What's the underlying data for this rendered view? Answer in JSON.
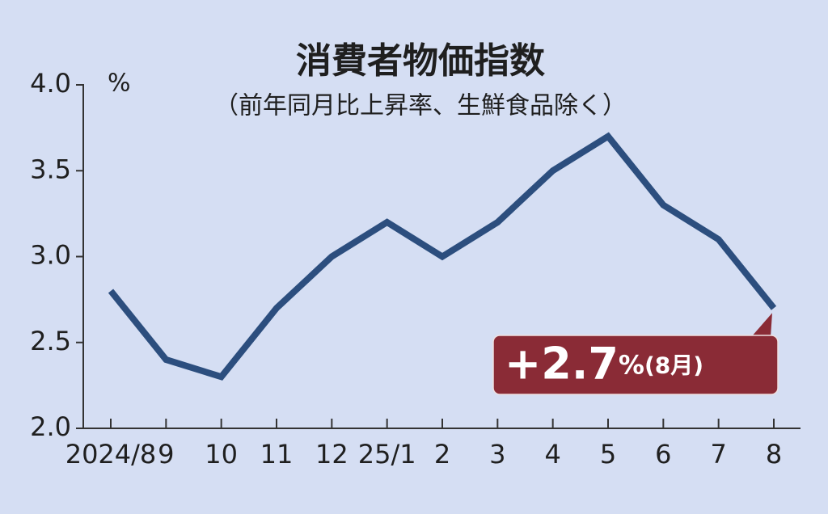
{
  "chart_data": {
    "type": "line",
    "title": "消費者物価指数",
    "subtitle": "（前年同月比上昇率、生鮮食品除く）",
    "y_unit": "%",
    "categories": [
      "2024/8",
      "9",
      "10",
      "11",
      "12",
      "25/1",
      "2",
      "3",
      "4",
      "5",
      "6",
      "7",
      "8"
    ],
    "values": [
      2.8,
      2.4,
      2.3,
      2.7,
      3.0,
      3.2,
      3.0,
      3.2,
      3.5,
      3.7,
      3.3,
      3.1,
      2.7
    ],
    "value_labels": [
      null,
      null,
      null,
      null,
      null,
      null,
      null,
      null,
      null,
      null,
      null,
      null,
      "+2.7"
    ],
    "callout_note": "(8月)",
    "color": "#2c4e7e",
    "ylim": [
      2.0,
      4.0
    ],
    "yticks": [
      {
        "value": 2.0,
        "label": "2.0"
      },
      2.5,
      {
        "value": 3.0,
        "label": "3.0"
      },
      3.5,
      {
        "value": 4.0,
        "label": "4.0"
      }
    ],
    "grid": false
  }
}
